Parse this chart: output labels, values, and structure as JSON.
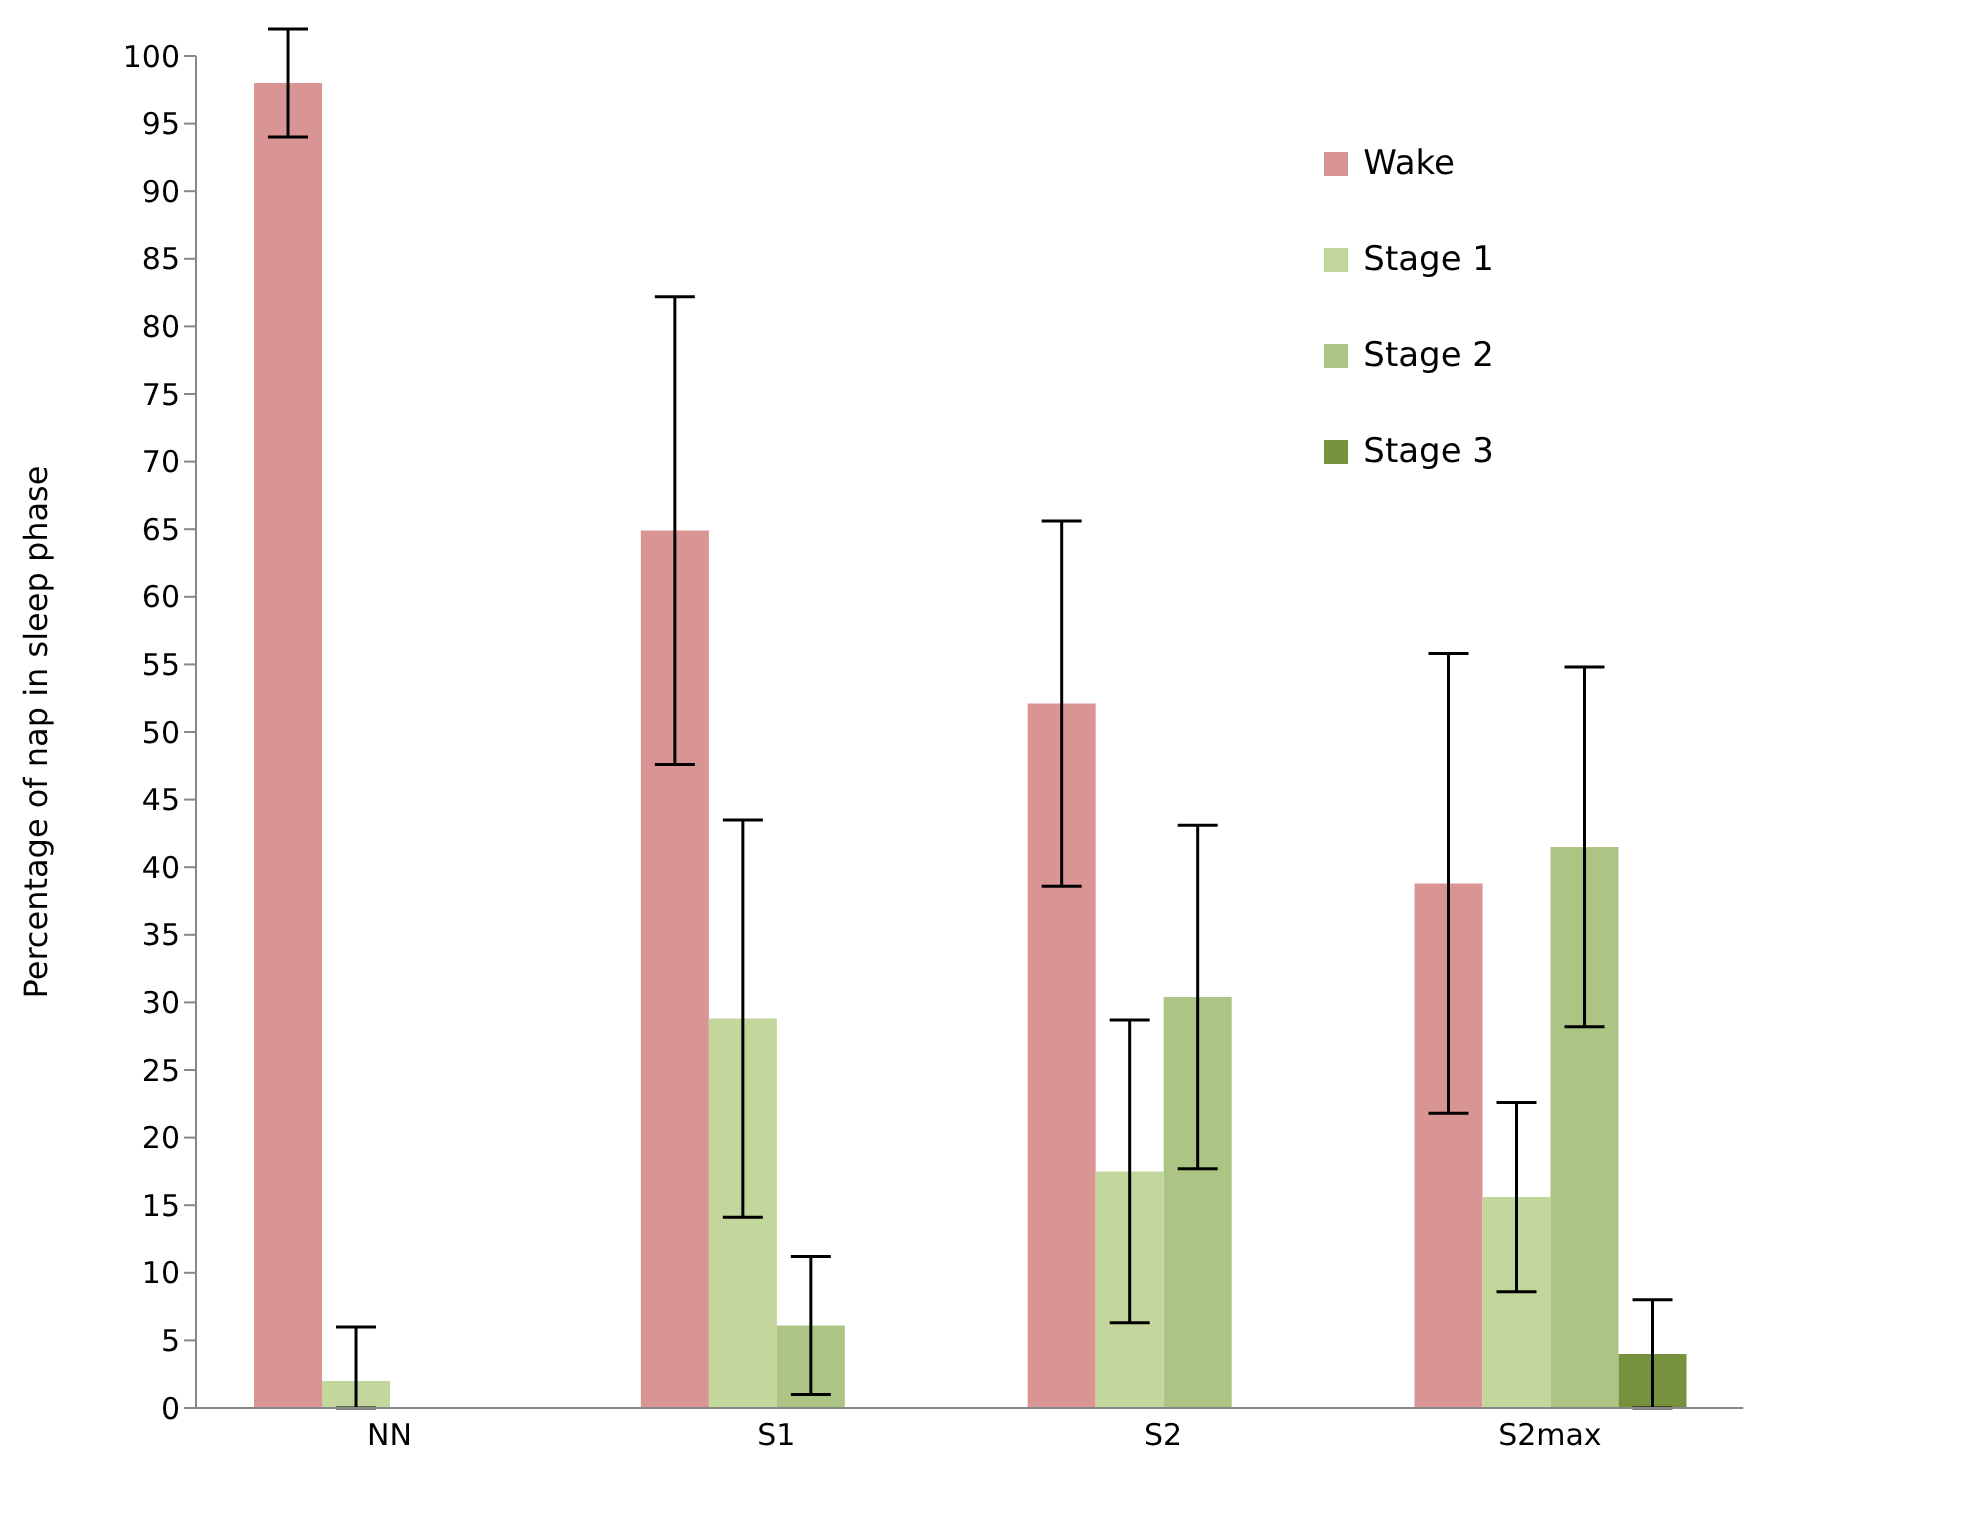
{
  "chart_data": {
    "type": "bar",
    "ylabel": "Percentage of nap in sleep phase",
    "categories": [
      "NN",
      "S1",
      "S2",
      "S2max"
    ],
    "series": [
      {
        "name": "Wake",
        "color": "#d99594",
        "values": [
          98,
          64.9,
          52.1,
          38.8
        ],
        "errors": [
          4,
          17.3,
          13.5,
          17
        ]
      },
      {
        "name": "Stage 1",
        "color": "#c3d69b",
        "values": [
          2,
          28.8,
          17.5,
          15.6
        ],
        "errors": [
          [
            0,
            6
          ],
          14.7,
          11.2,
          7
        ]
      },
      {
        "name": "Stage 2",
        "color": "#adc584",
        "values": [
          null,
          6.1,
          30.4,
          41.5
        ],
        "errors": [
          null,
          5.1,
          12.7,
          13.3
        ]
      },
      {
        "name": "Stage 3",
        "color": "#76923c",
        "values": [
          null,
          null,
          null,
          4
        ],
        "errors": [
          null,
          null,
          null,
          4
        ]
      }
    ],
    "ylim": [
      0,
      100
    ],
    "yticks": [
      0,
      5,
      10,
      15,
      20,
      25,
      30,
      35,
      40,
      45,
      50,
      55,
      60,
      65,
      70,
      75,
      80,
      85,
      90,
      95,
      100
    ],
    "grid": false,
    "legend": "top right"
  }
}
